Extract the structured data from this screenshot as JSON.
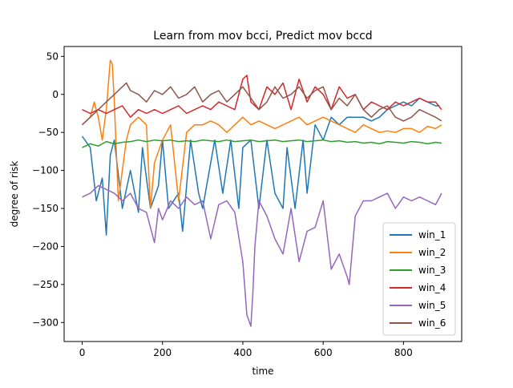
{
  "chart_data": {
    "type": "line",
    "title": "Learn from mov bcci, Predict mov bccd",
    "xlabel": "time",
    "ylabel": "degree of risk",
    "xlim": [
      -45,
      945
    ],
    "ylim": [
      -325,
      63
    ],
    "xticks": [
      0,
      200,
      400,
      600,
      800
    ],
    "xtick_labels": [
      "0",
      "200",
      "400",
      "600",
      "800"
    ],
    "yticks": [
      50,
      0,
      -50,
      -100,
      -150,
      -200,
      -250,
      -300
    ],
    "ytick_labels": [
      "50",
      "0",
      "−50",
      "−100",
      "−150",
      "−200",
      "−250",
      "−300"
    ],
    "grid": false,
    "legend_position": "lower-right",
    "series": [
      {
        "name": "win_1",
        "color": "#1f77b4",
        "x": [
          0,
          20,
          35,
          50,
          60,
          70,
          80,
          100,
          120,
          140,
          150,
          170,
          190,
          200,
          215,
          240,
          250,
          270,
          290,
          300,
          330,
          350,
          370,
          390,
          400,
          420,
          440,
          460,
          480,
          500,
          510,
          530,
          550,
          560,
          580,
          600,
          620,
          640,
          660,
          680,
          700,
          720,
          740,
          760,
          780,
          800,
          820,
          840,
          860,
          880,
          890
        ],
        "y": [
          -55,
          -70,
          -140,
          -110,
          -185,
          -80,
          -60,
          -150,
          -100,
          -155,
          -70,
          -150,
          -120,
          -60,
          -150,
          -130,
          -180,
          -60,
          -130,
          -150,
          -60,
          -130,
          -60,
          -150,
          -70,
          -60,
          -150,
          -60,
          -130,
          -150,
          -70,
          -150,
          -60,
          -130,
          -40,
          -60,
          -30,
          -40,
          -30,
          -30,
          -30,
          -35,
          -30,
          -20,
          -15,
          -10,
          -15,
          -5,
          -10,
          -15,
          -15
        ]
      },
      {
        "name": "win_2",
        "color": "#ff7f0e",
        "x": [
          0,
          10,
          20,
          30,
          40,
          50,
          60,
          70,
          75,
          80,
          90,
          100,
          110,
          120,
          140,
          160,
          170,
          180,
          200,
          210,
          220,
          240,
          260,
          280,
          300,
          320,
          340,
          360,
          380,
          400,
          420,
          440,
          460,
          480,
          500,
          520,
          540,
          560,
          580,
          600,
          620,
          640,
          660,
          680,
          700,
          720,
          740,
          760,
          780,
          800,
          820,
          840,
          860,
          880,
          895
        ],
        "y": [
          -40,
          -35,
          -30,
          -10,
          -30,
          -60,
          -20,
          45,
          40,
          -10,
          -140,
          -100,
          -60,
          -40,
          -30,
          -40,
          -150,
          -90,
          -60,
          -50,
          -40,
          -140,
          -50,
          -40,
          -40,
          -35,
          -40,
          -50,
          -40,
          -30,
          -40,
          -35,
          -40,
          -45,
          -40,
          -35,
          -30,
          -40,
          -35,
          -30,
          -35,
          -40,
          -45,
          -50,
          -40,
          -45,
          -50,
          -48,
          -50,
          -45,
          -45,
          -50,
          -42,
          -45,
          -40
        ]
      },
      {
        "name": "win_3",
        "color": "#2ca02c",
        "x": [
          0,
          20,
          40,
          60,
          80,
          100,
          120,
          140,
          160,
          180,
          200,
          220,
          240,
          260,
          280,
          300,
          320,
          340,
          360,
          380,
          400,
          420,
          440,
          460,
          480,
          500,
          520,
          540,
          560,
          580,
          600,
          620,
          640,
          660,
          680,
          700,
          720,
          740,
          760,
          780,
          800,
          820,
          840,
          860,
          880,
          895
        ],
        "y": [
          -70,
          -65,
          -68,
          -62,
          -65,
          -63,
          -62,
          -60,
          -62,
          -60,
          -61,
          -60,
          -62,
          -61,
          -62,
          -60,
          -61,
          -62,
          -60,
          -62,
          -61,
          -60,
          -62,
          -61,
          -60,
          -62,
          -61,
          -60,
          -62,
          -61,
          -60,
          -62,
          -61,
          -63,
          -62,
          -64,
          -63,
          -65,
          -62,
          -63,
          -64,
          -62,
          -63,
          -65,
          -63,
          -64
        ]
      },
      {
        "name": "win_4",
        "color": "#d62728",
        "x": [
          0,
          20,
          40,
          60,
          80,
          100,
          120,
          140,
          160,
          180,
          200,
          220,
          240,
          260,
          280,
          300,
          320,
          340,
          360,
          380,
          400,
          410,
          420,
          440,
          460,
          480,
          500,
          520,
          540,
          560,
          580,
          600,
          620,
          640,
          660,
          680,
          700,
          720,
          740,
          760,
          780,
          800,
          820,
          840,
          860,
          880,
          895
        ],
        "y": [
          -20,
          -25,
          -20,
          -25,
          -20,
          -15,
          -30,
          -20,
          -25,
          -20,
          -25,
          -20,
          -15,
          -25,
          -20,
          -15,
          -20,
          -10,
          -15,
          -20,
          20,
          25,
          -10,
          -20,
          10,
          0,
          15,
          -20,
          20,
          -10,
          10,
          0,
          -20,
          10,
          -5,
          0,
          -20,
          -10,
          -15,
          -20,
          -10,
          -15,
          -10,
          -5,
          -10,
          -10,
          -20
        ]
      },
      {
        "name": "win_5",
        "color": "#9467bd",
        "x": [
          0,
          20,
          40,
          60,
          80,
          100,
          120,
          140,
          160,
          180,
          190,
          200,
          220,
          240,
          260,
          280,
          300,
          320,
          340,
          360,
          380,
          400,
          410,
          420,
          425,
          430,
          440,
          460,
          480,
          500,
          520,
          540,
          560,
          580,
          600,
          620,
          640,
          660,
          665,
          680,
          700,
          720,
          740,
          760,
          780,
          800,
          820,
          840,
          860,
          880,
          895
        ],
        "y": [
          -135,
          -130,
          -120,
          -125,
          -130,
          -140,
          -130,
          -150,
          -155,
          -195,
          -150,
          -165,
          -140,
          -150,
          -135,
          -145,
          -140,
          -190,
          -145,
          -140,
          -155,
          -220,
          -290,
          -305,
          -260,
          -200,
          -140,
          -160,
          -190,
          -210,
          -150,
          -220,
          -180,
          -175,
          -140,
          -230,
          -210,
          -240,
          -250,
          -160,
          -140,
          -140,
          -135,
          -130,
          -150,
          -135,
          -140,
          -135,
          -140,
          -145,
          -130
        ]
      },
      {
        "name": "win_6",
        "color": "#8c564b",
        "x": [
          0,
          20,
          40,
          60,
          80,
          100,
          110,
          120,
          140,
          160,
          180,
          200,
          220,
          240,
          260,
          280,
          300,
          320,
          340,
          360,
          380,
          400,
          420,
          440,
          460,
          480,
          500,
          520,
          540,
          560,
          580,
          600,
          620,
          640,
          660,
          680,
          700,
          720,
          740,
          760,
          780,
          800,
          820,
          840,
          860,
          880,
          895
        ],
        "y": [
          -40,
          -30,
          -20,
          -10,
          0,
          10,
          15,
          5,
          0,
          -10,
          5,
          0,
          10,
          -5,
          0,
          10,
          -10,
          0,
          5,
          -10,
          0,
          10,
          -5,
          -20,
          -10,
          10,
          -5,
          0,
          10,
          -5,
          5,
          10,
          -20,
          -5,
          -15,
          0,
          -20,
          -30,
          -20,
          -15,
          -30,
          -35,
          -30,
          -20,
          -25,
          -30,
          -35
        ]
      }
    ]
  }
}
